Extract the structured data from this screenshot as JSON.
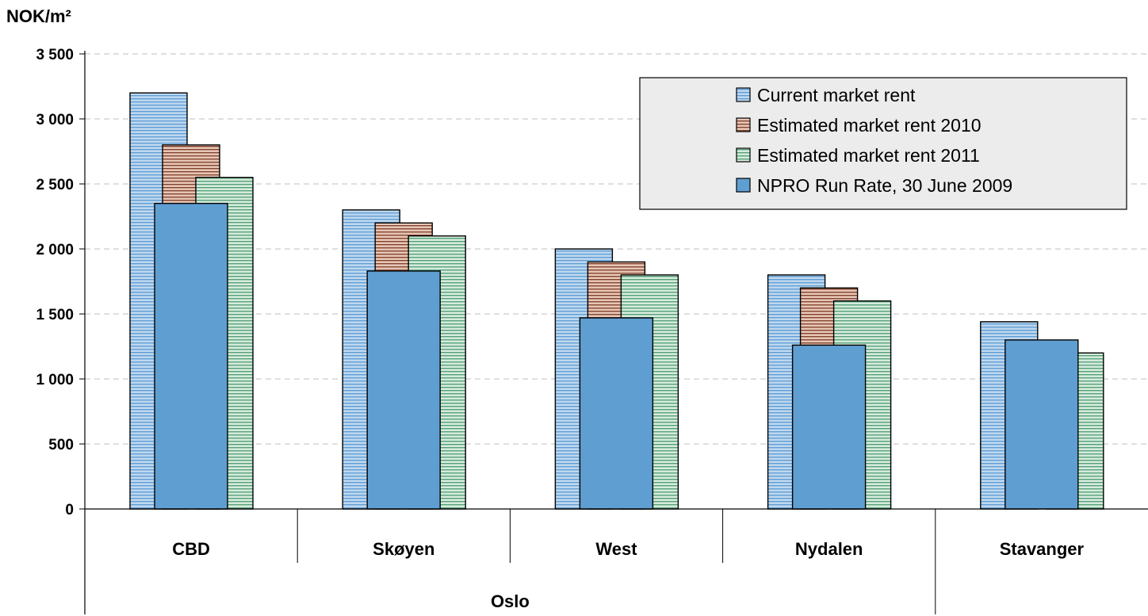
{
  "chart_data": {
    "type": "bar",
    "ylabel": "NOK/m²",
    "ylim": [
      0,
      3500
    ],
    "yticks": [
      0,
      500,
      1000,
      1500,
      2000,
      2500,
      3000,
      3500
    ],
    "ytick_labels": [
      "0",
      "500",
      "1 000",
      "1 500",
      "2 000",
      "2 500",
      "3 000",
      "3 500"
    ],
    "grid": "horizontal-dashed",
    "legend_position": "top-right",
    "categories": [
      "CBD",
      "Skøyen",
      "West",
      "Nydalen",
      "Stavanger"
    ],
    "category_groups": [
      {
        "label": "Oslo",
        "categories": [
          "CBD",
          "Skøyen",
          "West",
          "Nydalen"
        ]
      }
    ],
    "series": [
      {
        "name": "Current market rent",
        "values": [
          3200,
          2300,
          2000,
          1800,
          1440
        ],
        "color": "#bdd7ee",
        "stripe": "#5b9bd5"
      },
      {
        "name": "Estimated market rent 2010",
        "values": [
          2800,
          2200,
          1900,
          1700,
          null
        ],
        "color": "#e6c4b4",
        "stripe": "#7f3f2a"
      },
      {
        "name": "Estimated market rent 2011",
        "values": [
          2550,
          2100,
          1800,
          1600,
          1200
        ],
        "color": "#d5eadc",
        "stripe": "#4f9e74"
      },
      {
        "name": "NPRO Run Rate, 30 June 2009",
        "values": [
          2350,
          1830,
          1470,
          1260,
          1300
        ],
        "color": "#5f9ed1",
        "stripe": null
      }
    ]
  }
}
